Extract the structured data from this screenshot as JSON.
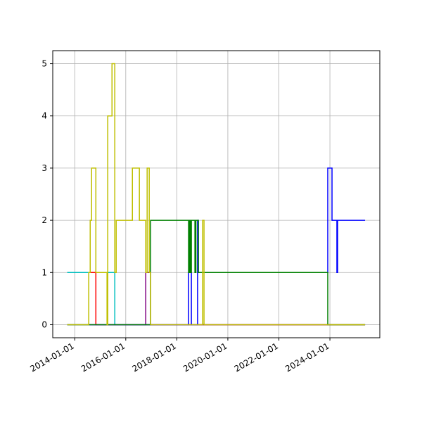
{
  "chart_data": {
    "type": "line",
    "step": "post",
    "grid": true,
    "xlim": [
      "2013-02-20",
      "2025-12-15"
    ],
    "xticks": [
      "2014-01-01",
      "2016-01-01",
      "2018-01-01",
      "2020-01-01",
      "2022-01-01",
      "2024-01-01"
    ],
    "ylim": [
      -0.25,
      5.25
    ],
    "yticks": [
      0,
      1,
      2,
      3,
      4,
      5
    ],
    "series": [
      {
        "color": "#00bfbf",
        "x": [
          "2013-09-15",
          "2015-07-28",
          "2025-05-18"
        ],
        "values": [
          1,
          0,
          0
        ]
      },
      {
        "color": "#ff0000",
        "x": [
          "2014-07-20",
          "2014-10-30",
          "2025-05-18"
        ],
        "values": [
          1,
          0,
          0
        ]
      },
      {
        "color": "#800080",
        "x": [
          "2014-08-01",
          "2016-10-13",
          "2016-12-22",
          "2025-05-18"
        ],
        "values": [
          0,
          1,
          0,
          0
        ]
      },
      {
        "color": "#0000ff",
        "x": [
          "2013-09-15",
          "2018-06-18",
          "2018-07-28",
          "2018-10-25",
          "2018-11-05",
          "2023-12-01",
          "2024-01-31",
          "2024-04-10",
          "2024-04-20",
          "2025-05-18"
        ],
        "values": [
          0,
          1,
          0,
          2,
          1,
          3,
          2,
          1,
          2,
          2
        ]
      },
      {
        "color": "#008000",
        "x": [
          "2013-09-15",
          "2016-12-22",
          "2018-06-18",
          "2018-07-01",
          "2018-07-15",
          "2018-07-28",
          "2018-09-17",
          "2018-10-01",
          "2018-11-05",
          "2023-12-01",
          "2025-05-18"
        ],
        "values": [
          0,
          2,
          1,
          2,
          1,
          2,
          1,
          2,
          1,
          0,
          0
        ]
      },
      {
        "color": "#bfbf00",
        "x": [
          "2013-09-15",
          "2014-07-20",
          "2014-08-10",
          "2014-08-30",
          "2014-10-30",
          "2015-04-08",
          "2015-04-18",
          "2015-06-18",
          "2015-07-28",
          "2015-08-17",
          "2016-04-05",
          "2016-07-14",
          "2016-10-13",
          "2016-11-02",
          "2016-12-02",
          "2016-12-22",
          "2019-01-05",
          "2019-01-25",
          "2025-05-18"
        ],
        "values": [
          0,
          1,
          2,
          3,
          1,
          0,
          4,
          5,
          1,
          2,
          3,
          2,
          1,
          3,
          1,
          0,
          2,
          0,
          0
        ]
      }
    ]
  }
}
